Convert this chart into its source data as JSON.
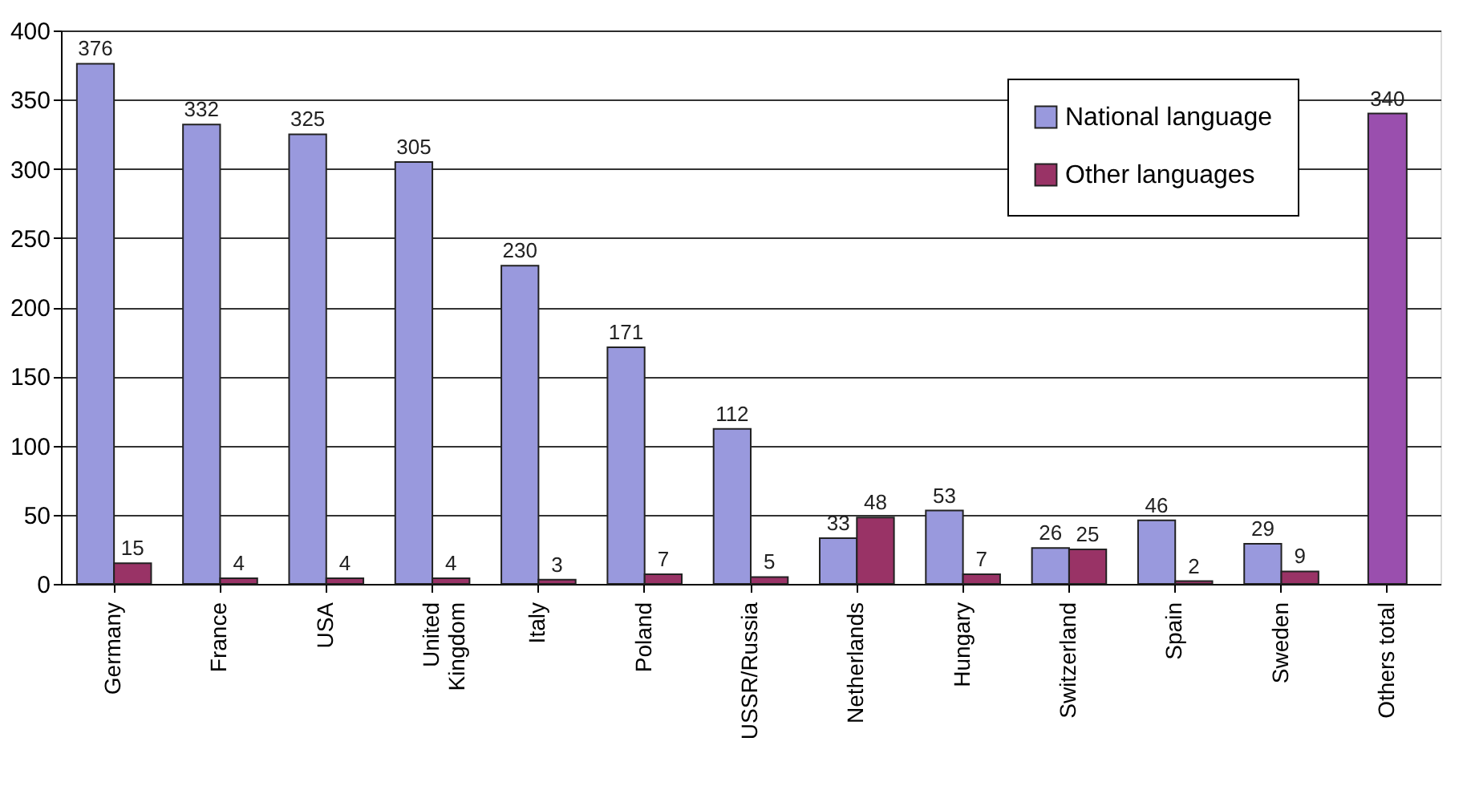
{
  "chart_data": {
    "type": "bar",
    "categories": [
      "Germany",
      "France",
      "USA",
      "United\nKingdom",
      "Italy",
      "Poland",
      "USSR/Russia",
      "Netherlands",
      "Hungary",
      "Switzerland",
      "Spain",
      "Sweden",
      "Others total"
    ],
    "series": [
      {
        "name": "National language",
        "color": "#9999dd",
        "values": [
          376,
          332,
          325,
          305,
          230,
          171,
          112,
          33,
          53,
          26,
          46,
          29,
          null
        ]
      },
      {
        "name": "Other languages",
        "color": "#993366",
        "values": [
          15,
          4,
          4,
          4,
          3,
          7,
          5,
          48,
          7,
          25,
          2,
          9,
          null
        ]
      },
      {
        "color": "#9a4fae",
        "values": [
          null,
          null,
          null,
          null,
          null,
          null,
          null,
          null,
          null,
          null,
          null,
          null,
          340
        ]
      }
    ],
    "ylim": [
      0,
      400
    ],
    "yticks": [
      0,
      50,
      100,
      150,
      200,
      250,
      300,
      350,
      400
    ],
    "grid": "y",
    "legend": "top right",
    "data_labels": true
  }
}
